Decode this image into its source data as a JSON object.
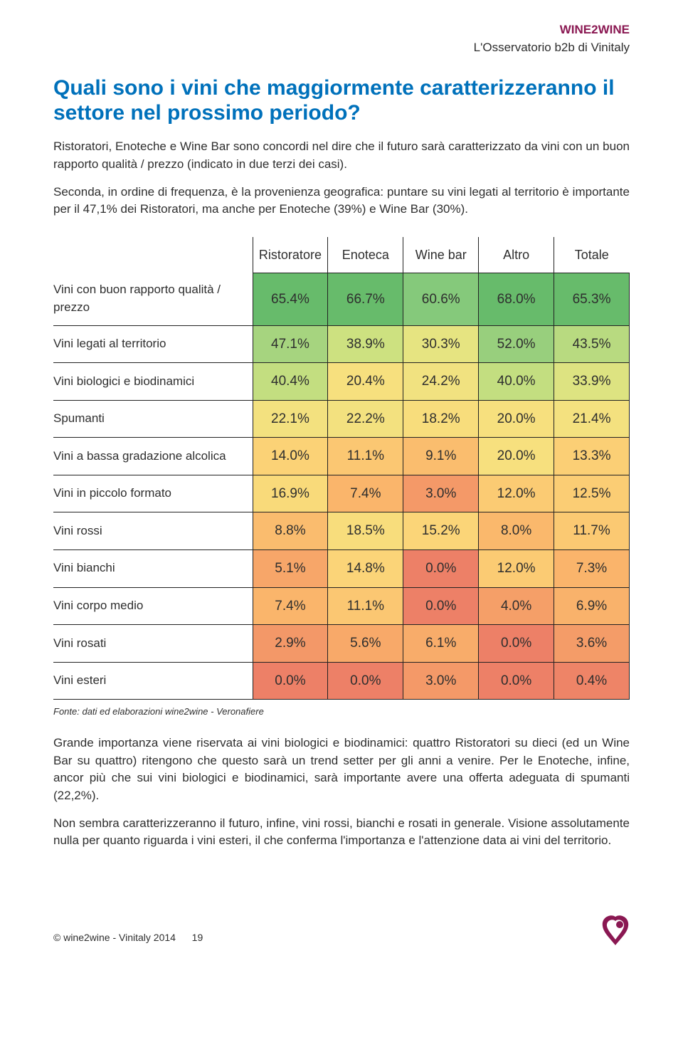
{
  "header": {
    "brand": "WINE2WINE",
    "subtitle": "L'Osservatorio b2b di Vinitaly"
  },
  "title": "Quali sono i vini che maggiormente caratterizzeranno il settore nel prossimo periodo?",
  "intro_paragraphs": [
    "Ristoratori, Enoteche e Wine Bar sono concordi nel dire che il futuro sarà caratterizzato da vini con un buon rapporto qualità / prezzo (indicato in due terzi dei casi).",
    "Seconda, in ordine di frequenza, è la provenienza geografica: puntare su vini legati al territorio è importante per il 47,1% dei Ristoratori, ma anche per Enoteche (39%) e Wine Bar (30%)."
  ],
  "table": {
    "columns": [
      "Ristoratore",
      "Enoteca",
      "Wine bar",
      "Altro",
      "Totale"
    ],
    "rows": [
      {
        "label": "Vini con buon rapporto qualità / prezzo",
        "cells": [
          {
            "v": "65.4%",
            "c": "#67bb6b"
          },
          {
            "v": "66.7%",
            "c": "#67bb6b"
          },
          {
            "v": "60.6%",
            "c": "#85c97b"
          },
          {
            "v": "68.0%",
            "c": "#67bb6b"
          },
          {
            "v": "65.3%",
            "c": "#67bb6b"
          }
        ]
      },
      {
        "label": "Vini legati al territorio",
        "cells": [
          {
            "v": "47.1%",
            "c": "#a6d47f"
          },
          {
            "v": "38.9%",
            "c": "#cde180"
          },
          {
            "v": "30.3%",
            "c": "#e6e481"
          },
          {
            "v": "52.0%",
            "c": "#98cf7d"
          },
          {
            "v": "43.5%",
            "c": "#b8da80"
          }
        ]
      },
      {
        "label": "Vini biologici e biodinamici",
        "cells": [
          {
            "v": "40.4%",
            "c": "#c3de80"
          },
          {
            "v": "20.4%",
            "c": "#f7e07e"
          },
          {
            "v": "24.2%",
            "c": "#f1e280"
          },
          {
            "v": "40.0%",
            "c": "#c3de80"
          },
          {
            "v": "33.9%",
            "c": "#dde381"
          }
        ]
      },
      {
        "label": "Spumanti",
        "cells": [
          {
            "v": "22.1%",
            "c": "#f3e17f"
          },
          {
            "v": "22.2%",
            "c": "#f3e17f"
          },
          {
            "v": "18.2%",
            "c": "#f8dd7c"
          },
          {
            "v": "20.0%",
            "c": "#f7e07e"
          },
          {
            "v": "21.4%",
            "c": "#f4e17f"
          }
        ]
      },
      {
        "label": "Vini a bassa gradazione alcolica",
        "cells": [
          {
            "v": "14.0%",
            "c": "#fbd276"
          },
          {
            "v": "11.1%",
            "c": "#fbc772"
          },
          {
            "v": "9.1%",
            "c": "#fabd6e"
          },
          {
            "v": "20.0%",
            "c": "#f7e07e"
          },
          {
            "v": "13.3%",
            "c": "#fbcf75"
          }
        ]
      },
      {
        "label": "Vini in piccolo formato",
        "cells": [
          {
            "v": "16.9%",
            "c": "#f9da7a"
          },
          {
            "v": "7.4%",
            "c": "#fab56b"
          },
          {
            "v": "3.0%",
            "c": "#f49968"
          },
          {
            "v": "12.0%",
            "c": "#fbcb73"
          },
          {
            "v": "12.5%",
            "c": "#fbcd74"
          }
        ]
      },
      {
        "label": "Vini rossi",
        "cells": [
          {
            "v": "8.8%",
            "c": "#fabc6e"
          },
          {
            "v": "18.5%",
            "c": "#f8dd7c"
          },
          {
            "v": "15.2%",
            "c": "#fbd578"
          },
          {
            "v": "8.0%",
            "c": "#fab86c"
          },
          {
            "v": "11.7%",
            "c": "#fbc972"
          }
        ]
      },
      {
        "label": "Vini bianchi",
        "cells": [
          {
            "v": "5.1%",
            "c": "#f7a669"
          },
          {
            "v": "14.8%",
            "c": "#fbd478"
          },
          {
            "v": "0.0%",
            "c": "#ed8067"
          },
          {
            "v": "12.0%",
            "c": "#fbcb73"
          },
          {
            "v": "7.3%",
            "c": "#fab46b"
          }
        ]
      },
      {
        "label": "Vini corpo medio",
        "cells": [
          {
            "v": "7.4%",
            "c": "#fab56b"
          },
          {
            "v": "11.1%",
            "c": "#fbc772"
          },
          {
            "v": "0.0%",
            "c": "#ed8067"
          },
          {
            "v": "4.0%",
            "c": "#f59f68"
          },
          {
            "v": "6.9%",
            "c": "#f9b26b"
          }
        ]
      },
      {
        "label": "Vini rosati",
        "cells": [
          {
            "v": "2.9%",
            "c": "#f39868"
          },
          {
            "v": "5.6%",
            "c": "#f8a969"
          },
          {
            "v": "6.1%",
            "c": "#f8ac6a"
          },
          {
            "v": "0.0%",
            "c": "#ed8067"
          },
          {
            "v": "3.6%",
            "c": "#f49c68"
          }
        ]
      },
      {
        "label": "Vini esteri",
        "cells": [
          {
            "v": "0.0%",
            "c": "#ed8067"
          },
          {
            "v": "0.0%",
            "c": "#ed8067"
          },
          {
            "v": "3.0%",
            "c": "#f49968"
          },
          {
            "v": "0.0%",
            "c": "#ed8067"
          },
          {
            "v": "0.4%",
            "c": "#ee8467"
          }
        ]
      }
    ]
  },
  "source": "Fonte: dati ed elaborazioni wine2wine - Veronafiere",
  "outro_paragraphs": [
    "Grande importanza viene riservata ai vini biologici e biodinamici: quattro Ristoratori su dieci (ed un Wine Bar su quattro) ritengono che questo sarà un trend setter per gli anni a venire. Per le Enoteche, infine, ancor più che sui vini biologici e biodinamici, sarà importante avere una offerta adeguata di spumanti (22,2%).",
    "Non sembra caratterizzeranno il futuro, infine, vini rossi, bianchi e rosati in generale. Visione assolutamente nulla per quanto riguarda i vini esteri, il che conferma l'importanza e l'attenzione data ai vini del territorio."
  ],
  "footer": {
    "copyright": "© wine2wine - Vinitaly 2014",
    "page": "19"
  },
  "logo_colors": {
    "fill": "#8a1852"
  }
}
